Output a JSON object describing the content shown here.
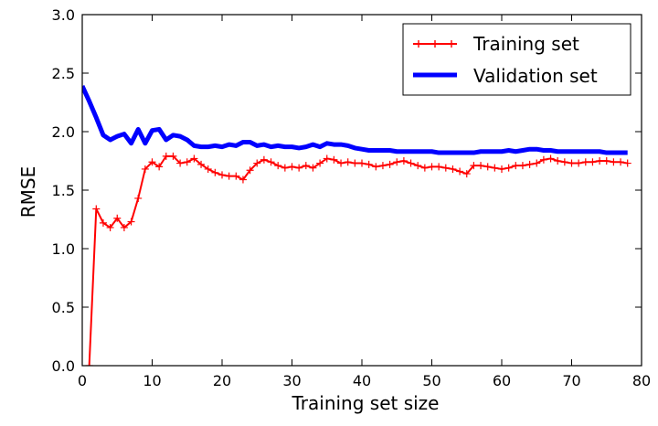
{
  "chart_data": {
    "type": "line",
    "title": "",
    "xlabel": "Training set size",
    "ylabel": "RMSE",
    "xlim": [
      0,
      80
    ],
    "ylim": [
      0.0,
      3.0
    ],
    "xticks": [
      "0",
      "10",
      "20",
      "30",
      "40",
      "50",
      "60",
      "70",
      "80"
    ],
    "yticks": [
      "0.0",
      "0.5",
      "1.0",
      "1.5",
      "2.0",
      "2.5",
      "3.0"
    ],
    "grid": false,
    "legend_position": "top-right",
    "series": [
      {
        "name": "Training set",
        "color": "#ff0000",
        "line_style": "thin-with-plus-markers",
        "x": [
          1,
          2,
          3,
          4,
          5,
          6,
          7,
          8,
          9,
          10,
          11,
          12,
          13,
          14,
          15,
          16,
          17,
          18,
          19,
          20,
          21,
          22,
          23,
          24,
          25,
          26,
          27,
          28,
          29,
          30,
          31,
          32,
          33,
          34,
          35,
          36,
          37,
          38,
          39,
          40,
          41,
          42,
          43,
          44,
          45,
          46,
          47,
          48,
          49,
          50,
          51,
          52,
          53,
          54,
          55,
          56,
          57,
          58,
          59,
          60,
          61,
          62,
          63,
          64,
          65,
          66,
          67,
          68,
          69,
          70,
          71,
          72,
          73,
          74,
          75,
          76,
          77,
          78
        ],
        "values": [
          0.0,
          1.34,
          1.22,
          1.18,
          1.26,
          1.18,
          1.23,
          1.43,
          1.68,
          1.74,
          1.7,
          1.79,
          1.79,
          1.73,
          1.74,
          1.77,
          1.72,
          1.68,
          1.65,
          1.63,
          1.62,
          1.62,
          1.59,
          1.67,
          1.73,
          1.76,
          1.74,
          1.71,
          1.69,
          1.7,
          1.69,
          1.71,
          1.69,
          1.73,
          1.77,
          1.76,
          1.73,
          1.74,
          1.73,
          1.73,
          1.72,
          1.7,
          1.71,
          1.72,
          1.74,
          1.75,
          1.73,
          1.71,
          1.69,
          1.7,
          1.7,
          1.69,
          1.68,
          1.66,
          1.64,
          1.71,
          1.71,
          1.7,
          1.69,
          1.68,
          1.69,
          1.71,
          1.71,
          1.72,
          1.73,
          1.76,
          1.77,
          1.75,
          1.74,
          1.73,
          1.73,
          1.74,
          1.74,
          1.75,
          1.75,
          1.74,
          1.74,
          1.73
        ]
      },
      {
        "name": "Validation set",
        "color": "#0000ff",
        "line_style": "thick",
        "x": [
          0,
          1,
          2,
          3,
          4,
          5,
          6,
          7,
          8,
          9,
          10,
          11,
          12,
          13,
          14,
          15,
          16,
          17,
          18,
          19,
          20,
          21,
          22,
          23,
          24,
          25,
          26,
          27,
          28,
          29,
          30,
          31,
          32,
          33,
          34,
          35,
          36,
          37,
          38,
          39,
          40,
          41,
          42,
          43,
          44,
          45,
          46,
          47,
          48,
          49,
          50,
          51,
          52,
          53,
          54,
          55,
          56,
          57,
          58,
          59,
          60,
          61,
          62,
          63,
          64,
          65,
          66,
          67,
          68,
          69,
          70,
          71,
          72,
          73,
          74,
          75,
          76,
          77,
          78
        ],
        "values": [
          2.39,
          2.26,
          2.12,
          1.97,
          1.93,
          1.96,
          1.98,
          1.9,
          2.02,
          1.9,
          2.01,
          2.02,
          1.93,
          1.97,
          1.96,
          1.93,
          1.88,
          1.87,
          1.87,
          1.88,
          1.87,
          1.89,
          1.88,
          1.91,
          1.91,
          1.88,
          1.89,
          1.87,
          1.88,
          1.87,
          1.87,
          1.86,
          1.87,
          1.89,
          1.87,
          1.9,
          1.89,
          1.89,
          1.88,
          1.86,
          1.85,
          1.84,
          1.84,
          1.84,
          1.84,
          1.83,
          1.83,
          1.83,
          1.83,
          1.83,
          1.83,
          1.82,
          1.82,
          1.82,
          1.82,
          1.82,
          1.82,
          1.83,
          1.83,
          1.83,
          1.83,
          1.84,
          1.83,
          1.84,
          1.85,
          1.85,
          1.84,
          1.84,
          1.83,
          1.83,
          1.83,
          1.83,
          1.83,
          1.83,
          1.83,
          1.82,
          1.82,
          1.82,
          1.82
        ]
      }
    ]
  }
}
